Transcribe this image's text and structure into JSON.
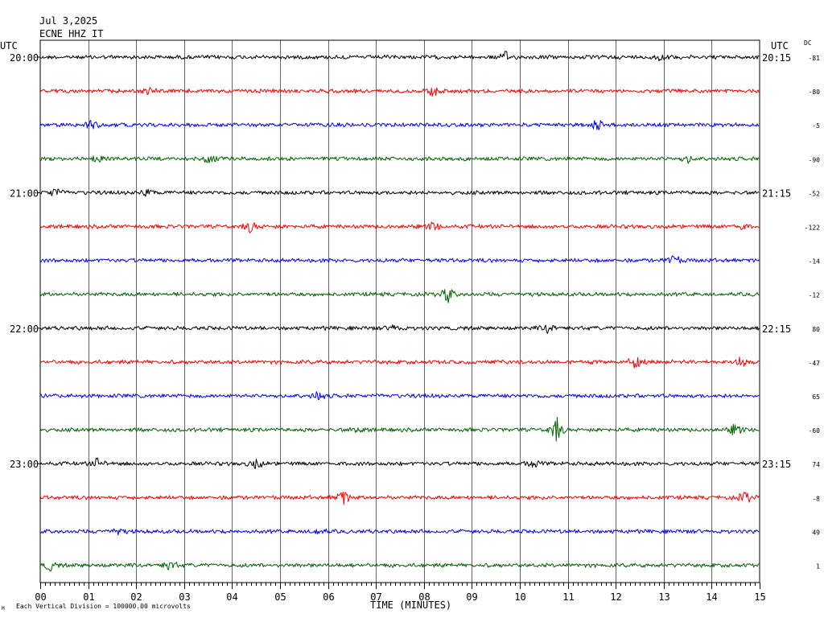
{
  "header": {
    "date": "Jul 3,2025",
    "station": "ECNE HHZ IT",
    "utc_left": "UTC",
    "utc_right": "UTC",
    "dc_label": "DC"
  },
  "footer": {
    "xaxis_title": "TIME (MINUTES)",
    "scale_note": "Each Vertical Division = 100000.00 microvolts",
    "corner_mark": "M"
  },
  "chart_data": {
    "type": "line",
    "title": "Jul 3,2025",
    "subtitle": "ECNE HHZ IT",
    "xlabel": "TIME (MINUTES)",
    "x_ticks": [
      "00",
      "01",
      "02",
      "03",
      "04",
      "05",
      "06",
      "07",
      "08",
      "09",
      "10",
      "11",
      "12",
      "13",
      "14",
      "15"
    ],
    "xlim": [
      0,
      15
    ],
    "grid": true,
    "colors": [
      "#000000",
      "#ff0000",
      "#0000ff",
      "#006400"
    ],
    "left_hour_labels": [
      "20:00",
      "21:00",
      "22:00",
      "23:00"
    ],
    "right_hour_labels": [
      "20:15",
      "21:15",
      "22:15",
      "23:15"
    ],
    "dc_offsets": [
      "-81",
      "-80",
      "-5",
      "-90",
      "-52",
      "-122",
      "-14",
      "-12",
      "80",
      "-47",
      "65",
      "-60",
      "74",
      "-8",
      "49",
      "1"
    ],
    "traces": 16,
    "events": [
      {
        "trace": 0,
        "minute": 9.7,
        "amp": 1.3
      },
      {
        "trace": 0,
        "minute": 12.9,
        "amp": 1.0
      },
      {
        "trace": 1,
        "minute": 8.2,
        "amp": 1.6
      },
      {
        "trace": 1,
        "minute": 2.3,
        "amp": 1.0
      },
      {
        "trace": 2,
        "minute": 1.1,
        "amp": 1.5
      },
      {
        "trace": 2,
        "minute": 11.6,
        "amp": 1.4
      },
      {
        "trace": 3,
        "minute": 1.2,
        "amp": 1.3
      },
      {
        "trace": 3,
        "minute": 3.5,
        "amp": 1.2
      },
      {
        "trace": 3,
        "minute": 13.5,
        "amp": 1.1
      },
      {
        "trace": 4,
        "minute": 0.3,
        "amp": 1.4
      },
      {
        "trace": 4,
        "minute": 2.2,
        "amp": 1.0
      },
      {
        "trace": 5,
        "minute": 4.4,
        "amp": 1.4
      },
      {
        "trace": 5,
        "minute": 8.2,
        "amp": 1.2
      },
      {
        "trace": 5,
        "minute": 14.6,
        "amp": 1.0
      },
      {
        "trace": 6,
        "minute": 13.2,
        "amp": 1.4
      },
      {
        "trace": 7,
        "minute": 8.5,
        "amp": 1.9
      },
      {
        "trace": 8,
        "minute": 10.6,
        "amp": 1.3
      },
      {
        "trace": 8,
        "minute": 7.4,
        "amp": 1.0
      },
      {
        "trace": 9,
        "minute": 12.4,
        "amp": 1.9
      },
      {
        "trace": 9,
        "minute": 14.6,
        "amp": 1.5
      },
      {
        "trace": 10,
        "minute": 5.8,
        "amp": 1.2
      },
      {
        "trace": 11,
        "minute": 10.75,
        "amp": 3.2
      },
      {
        "trace": 11,
        "minute": 14.5,
        "amp": 1.6
      },
      {
        "trace": 11,
        "minute": 6.6,
        "amp": 1.1
      },
      {
        "trace": 12,
        "minute": 1.2,
        "amp": 1.3
      },
      {
        "trace": 12,
        "minute": 4.5,
        "amp": 1.4
      },
      {
        "trace": 12,
        "minute": 10.3,
        "amp": 1.3
      },
      {
        "trace": 13,
        "minute": 6.3,
        "amp": 2.5
      },
      {
        "trace": 13,
        "minute": 14.7,
        "amp": 1.5
      },
      {
        "trace": 14,
        "minute": 1.6,
        "amp": 1.1
      },
      {
        "trace": 14,
        "minute": 5.8,
        "amp": 1.1
      },
      {
        "trace": 15,
        "minute": 0.2,
        "amp": 1.3
      },
      {
        "trace": 15,
        "minute": 2.7,
        "amp": 1.4
      }
    ]
  }
}
